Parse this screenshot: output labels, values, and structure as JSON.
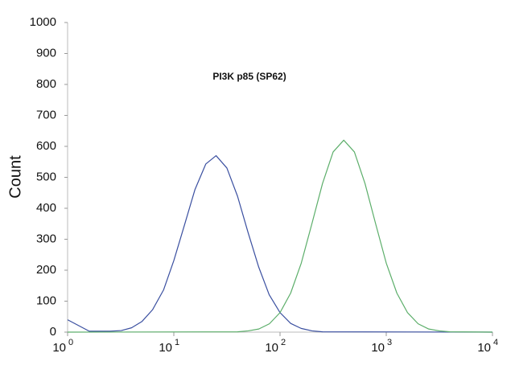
{
  "chart_data": {
    "type": "line",
    "title": "PI3K p85 (SP62)",
    "y_label": "Count",
    "xscale": "log",
    "xlim": [
      1,
      10000
    ],
    "ylim": [
      0,
      1000
    ],
    "xticks": [
      {
        "value": 1,
        "label": "10",
        "exponent": "0"
      },
      {
        "value": 10,
        "label": "10",
        "exponent": "1"
      },
      {
        "value": 100,
        "label": "10",
        "exponent": "2"
      },
      {
        "value": 1000,
        "label": "10",
        "exponent": "3"
      },
      {
        "value": 10000,
        "label": "10",
        "exponent": "4"
      }
    ],
    "yticks": [
      0,
      100,
      200,
      300,
      400,
      500,
      600,
      700,
      800,
      900,
      1000
    ],
    "series": [
      {
        "color": "#3a4fa0",
        "x": [
          1,
          1.6,
          2.5,
          3.2,
          4,
          5,
          6.3,
          8,
          10,
          12.6,
          15.8,
          20,
          25,
          31.6,
          39.8,
          50,
          63,
          79,
          100,
          126,
          158,
          200,
          251,
          10000
        ],
        "values": [
          40,
          3,
          3,
          5,
          14,
          34,
          72,
          136,
          231,
          346,
          460,
          543,
          570,
          530,
          439,
          322,
          210,
          121,
          63,
          28,
          12,
          4,
          1,
          0
        ]
      },
      {
        "color": "#5cae6a",
        "x": [
          1,
          39.8,
          50.1,
          63.1,
          79.4,
          100,
          125.9,
          158.5,
          199.5,
          251.2,
          316.2,
          398.1,
          501.2,
          631,
          794.3,
          1000,
          1259,
          1585,
          1995,
          2512,
          3162,
          3981,
          10000
        ],
        "values": [
          0,
          1,
          4,
          10,
          27,
          63,
          126,
          223,
          350,
          480,
          582,
          620,
          582,
          480,
          350,
          223,
          126,
          63,
          27,
          10,
          4,
          1,
          0
        ]
      }
    ]
  }
}
